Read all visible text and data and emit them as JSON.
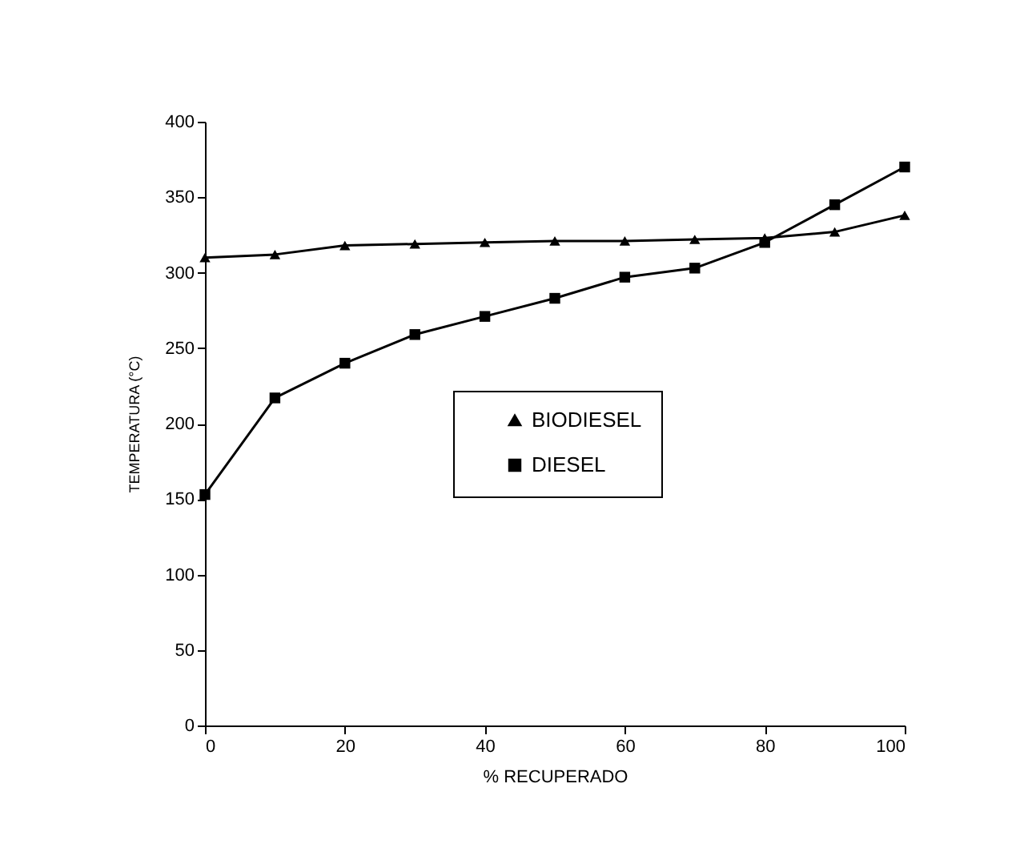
{
  "chart_data": {
    "type": "line",
    "xlabel": "% RECUPERADO",
    "ylabel": "TEMPERATURA (°C)",
    "x": [
      0,
      10,
      20,
      30,
      40,
      50,
      60,
      70,
      80,
      90,
      100
    ],
    "xlim": [
      0,
      100
    ],
    "xticks": [
      0,
      20,
      40,
      60,
      80,
      100
    ],
    "ylim": [
      0,
      400
    ],
    "yticks": [
      0,
      50,
      100,
      150,
      200,
      250,
      300,
      350,
      400
    ],
    "grid": false,
    "legend": "bottom right",
    "series": [
      {
        "name": "BIODIESEL",
        "color": "#000000",
        "marker": "triangle",
        "values": [
          310,
          312,
          318,
          319,
          320,
          321,
          321,
          322,
          323,
          327,
          338
        ]
      },
      {
        "name": "DIESEL",
        "color": "#000000",
        "marker": "square",
        "values": [
          153,
          217,
          240,
          259,
          271,
          283,
          297,
          303,
          320,
          345,
          370
        ]
      }
    ]
  }
}
